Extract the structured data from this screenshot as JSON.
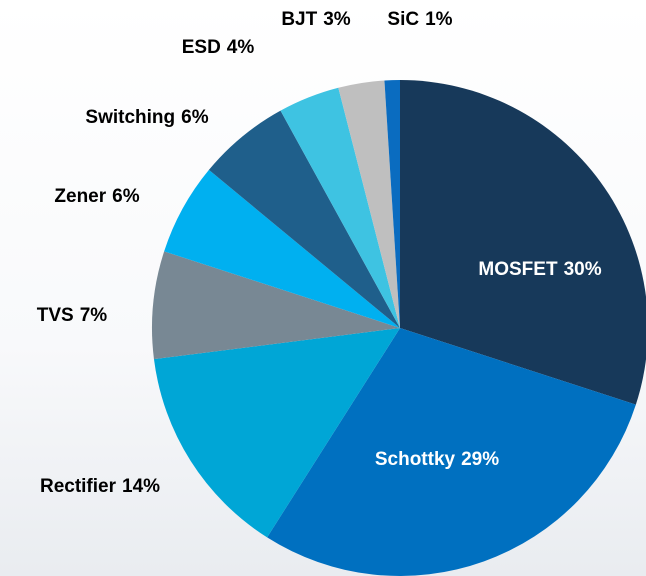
{
  "chart_data": {
    "type": "pie",
    "categories": [
      "MOSFET",
      "Schottky",
      "Rectifier",
      "TVS",
      "Zener",
      "Switching",
      "ESD",
      "BJT",
      "SiC"
    ],
    "values": [
      30,
      29,
      14,
      7,
      6,
      6,
      4,
      3,
      1
    ],
    "value_labels": [
      "30%",
      "29%",
      "14%",
      "7%",
      "6%",
      "6%",
      "4%",
      "3%",
      "1%"
    ],
    "colors": [
      "#17395a",
      "#0070c0",
      "#00a6d6",
      "#788894",
      "#00b0f0",
      "#1f5f8b",
      "#3ec3e2",
      "#bfbfbf",
      "#0a6cc0"
    ]
  }
}
